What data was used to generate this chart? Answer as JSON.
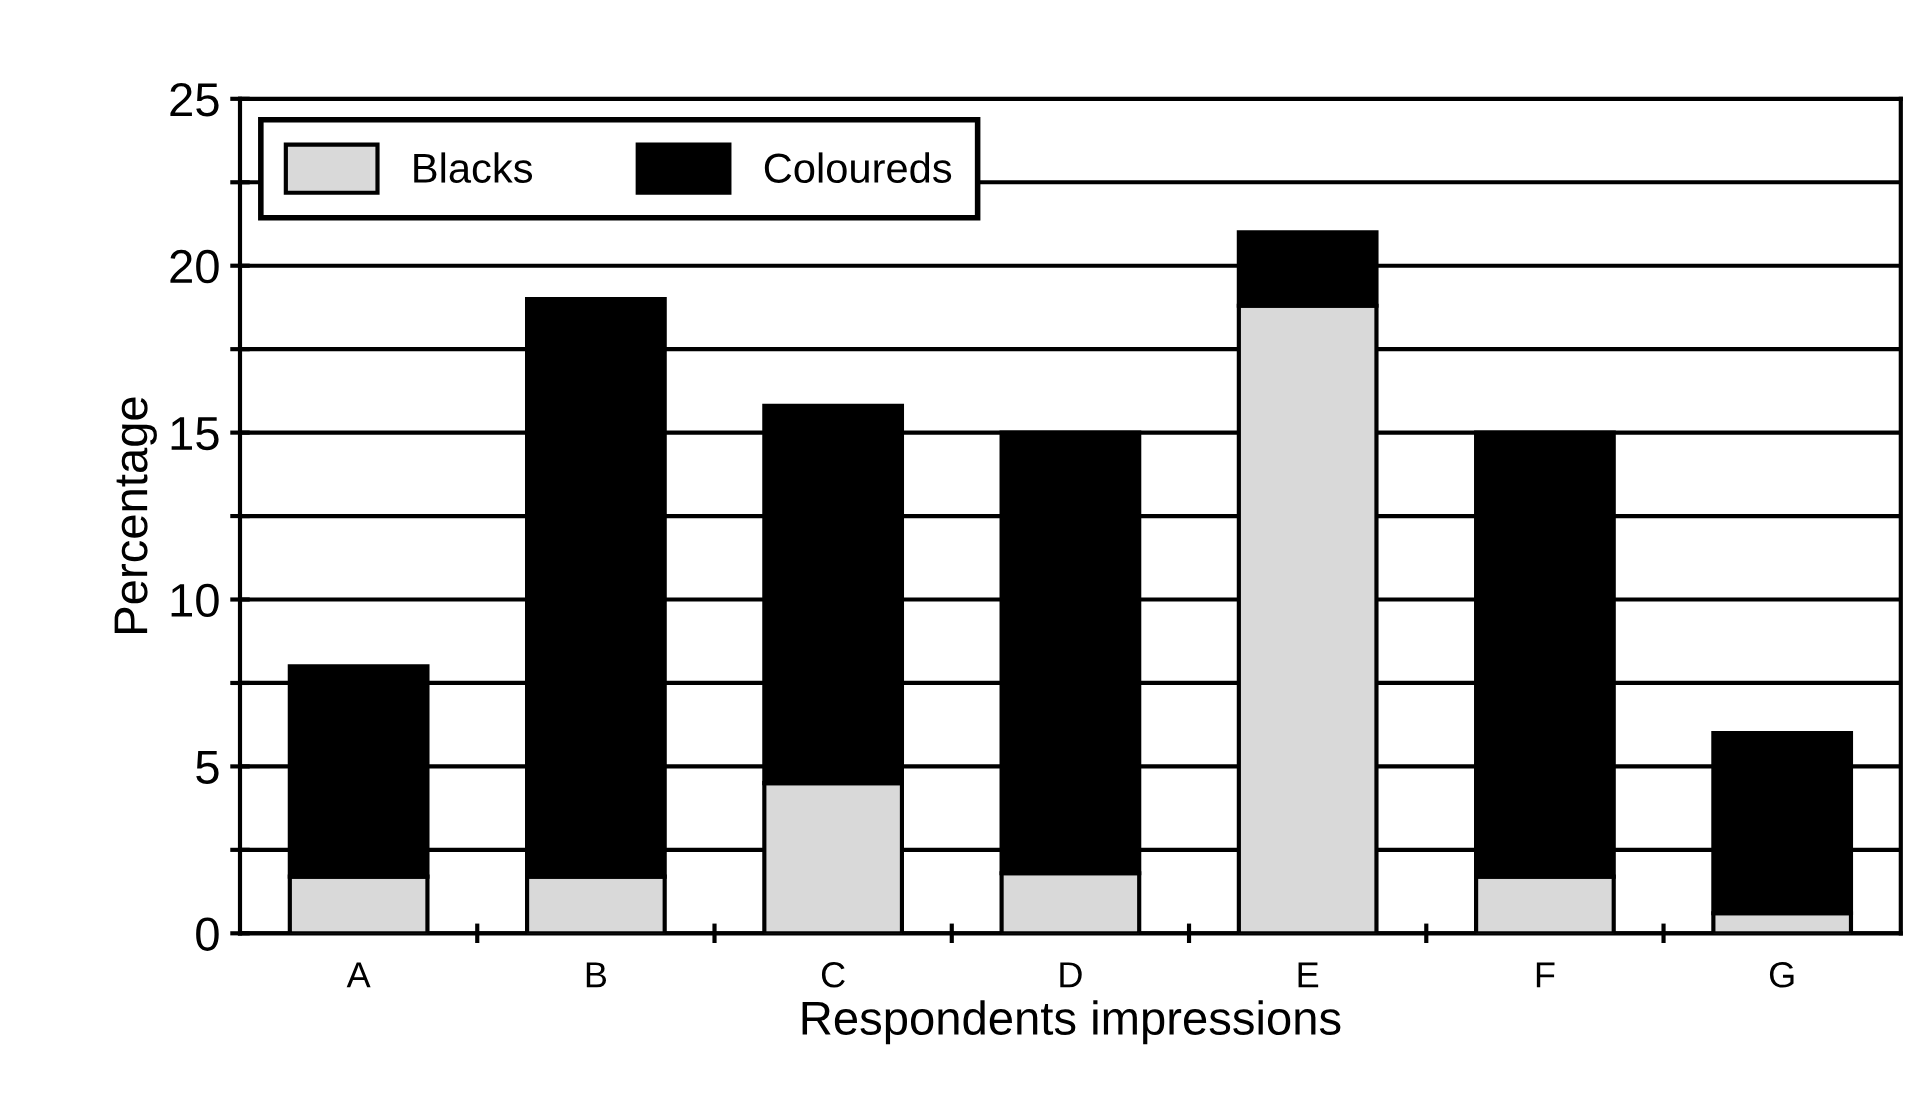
{
  "chart_data": {
    "type": "bar",
    "stacked": true,
    "xlabel": "Respondents impressions",
    "ylabel": "Percentage",
    "categories": [
      "A",
      "B",
      "C",
      "D",
      "E",
      "F",
      "G"
    ],
    "series": [
      {
        "name": "Blacks",
        "color": "#d9d9d9",
        "values": [
          1.7,
          1.7,
          4.5,
          1.8,
          18.8,
          1.7,
          0.6
        ]
      },
      {
        "name": "Coloureds",
        "color": "#000000",
        "values": [
          6.3,
          17.3,
          11.3,
          13.2,
          2.2,
          13.3,
          5.4
        ]
      }
    ],
    "ylim": [
      0,
      25
    ],
    "yticks": [
      0,
      {
        "value": 2.5,
        "label": null
      },
      5,
      {
        "value": 7.5,
        "label": null
      },
      10,
      {
        "value": 12.5,
        "label": null
      },
      15,
      {
        "value": 17.5,
        "label": null
      },
      20,
      {
        "value": 22.5,
        "label": null
      },
      25
    ],
    "grid": "y",
    "legend": "top left"
  }
}
